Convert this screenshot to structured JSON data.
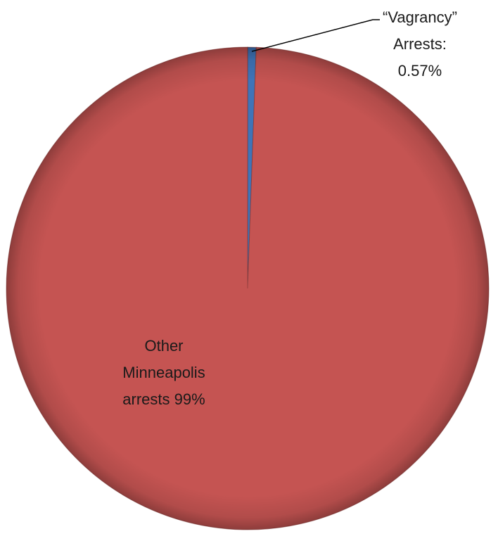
{
  "chart_data": {
    "type": "pie",
    "title": "",
    "slices": [
      {
        "label_lines": [
          "“Vagrancy”",
          "Arrests:",
          "0.57%"
        ],
        "value": 0.57,
        "color": "#3f74b8"
      },
      {
        "label_lines": [
          "Other",
          "Minneapolis",
          "arrests 99%"
        ],
        "value": 99.43,
        "color": "#c55452"
      }
    ],
    "start_angle_deg": 0,
    "direction": "clockwise",
    "legend": "none",
    "style": "3d-beveled"
  }
}
